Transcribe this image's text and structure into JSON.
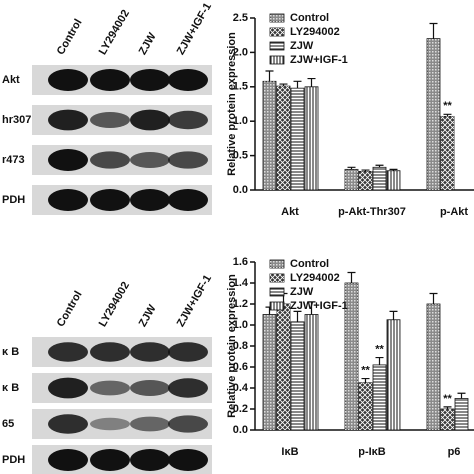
{
  "chart_data": [
    {
      "type": "bar",
      "y_label": "Relative protein expression",
      "categories": [
        "Akt",
        "p-Akt-Thr307",
        "p-Akt"
      ],
      "series": [
        {
          "name": "Control",
          "color": "#8a8a8a",
          "values": [
            1.58,
            0.3,
            2.2
          ],
          "errors": [
            0.15,
            0.03,
            0.22
          ]
        },
        {
          "name": "LY294002",
          "color": "#3a3a3a",
          "values": [
            1.51,
            0.27,
            1.07
          ],
          "errors": [
            0.03,
            0.02,
            0.03
          ]
        },
        {
          "name": "ZJW",
          "color": "#ffffff",
          "values": [
            1.48,
            0.33,
            null
          ],
          "errors": [
            0.1,
            0.03,
            null
          ]
        },
        {
          "name": "ZJW+IGF-1",
          "color": "#ffffff",
          "values": [
            1.5,
            0.28,
            null
          ],
          "errors": [
            0.12,
            0.02,
            null
          ]
        }
      ],
      "ylim": [
        0,
        2.5
      ],
      "yticks": [
        {
          "value": 0,
          "label": "0.0"
        },
        0.5,
        {
          "value": 1,
          "label": "1.0"
        },
        1.5,
        {
          "value": 2,
          "label": "2.0"
        },
        2.5
      ],
      "annotations": [
        {
          "text": "**",
          "category": 2,
          "series": 1
        }
      ]
    },
    {
      "type": "bar",
      "y_label": "Relative protein expression",
      "categories": [
        "IκB",
        "p-IκB",
        "p6"
      ],
      "series": [
        {
          "name": "Control",
          "color": "#8a8a8a",
          "values": [
            1.1,
            1.4,
            1.2
          ],
          "errors": [
            0.07,
            0.1,
            0.1
          ]
        },
        {
          "name": "LY294002",
          "color": "#3a3a3a",
          "values": [
            1.2,
            0.45,
            0.2
          ],
          "errors": [
            0.1,
            0.04,
            0.02
          ]
        },
        {
          "name": "ZJW",
          "color": "#ffffff",
          "values": [
            1.03,
            0.62,
            0.3
          ],
          "errors": [
            0.1,
            0.07,
            0.05
          ]
        },
        {
          "name": "ZJW+IGF-1",
          "color": "#ffffff",
          "values": [
            1.1,
            1.05,
            null
          ],
          "errors": [
            0.12,
            0.08,
            null
          ]
        }
      ],
      "ylim": [
        0,
        1.6
      ],
      "yticks": [
        {
          "value": 0,
          "label": "0.0"
        },
        0.2,
        0.4,
        0.6,
        0.8,
        {
          "value": 1,
          "label": "1.0"
        },
        1.2,
        1.4,
        1.6
      ],
      "annotations": [
        {
          "text": "**",
          "category": 1,
          "series": 1
        },
        {
          "text": "**",
          "category": 1,
          "series": 2
        },
        {
          "text": "**",
          "category": 2,
          "series": 1
        }
      ]
    }
  ],
  "blots": [
    {
      "lanes": [
        "Control",
        "LY294002",
        "ZJW",
        "ZJW+IGF-1"
      ],
      "rows": [
        "Akt",
        "hr307",
        "r473",
        "PDH"
      ]
    },
    {
      "lanes": [
        "Control",
        "LY294002",
        "ZJW",
        "ZJW+IGF-1"
      ],
      "rows": [
        "κ B",
        "κ B",
        "65",
        "PDH"
      ]
    }
  ]
}
